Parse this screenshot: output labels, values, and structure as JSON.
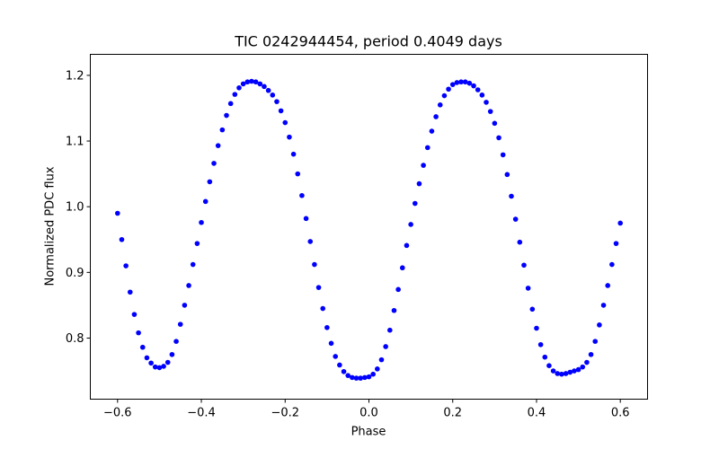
{
  "chart_data": {
    "type": "scatter",
    "title": "TIC 0242944454, period 0.4049 days",
    "xlabel": "Phase",
    "ylabel": "Normalized PDC flux",
    "xlim": [
      -0.665,
      0.665
    ],
    "ylim": [
      0.707,
      1.232
    ],
    "xticks": [
      -0.6,
      -0.4,
      -0.2,
      0.0,
      0.2,
      0.4,
      0.6
    ],
    "xtick_labels": [
      "−0.6",
      "−0.4",
      "−0.2",
      "0.0",
      "0.2",
      "0.4",
      "0.6"
    ],
    "yticks": [
      0.8,
      0.9,
      1.0,
      1.1,
      1.2
    ],
    "ytick_labels": [
      "0.8",
      "0.9",
      "1.0",
      "1.1",
      "1.2"
    ],
    "grid": false,
    "marker_color": "#0000ff",
    "series": [
      {
        "x": [
          -0.6,
          -0.59,
          -0.58,
          -0.57,
          -0.56,
          -0.55,
          -0.54,
          -0.53,
          -0.52,
          -0.51,
          -0.5,
          -0.49,
          -0.48,
          -0.47,
          -0.46,
          -0.45,
          -0.44,
          -0.43,
          -0.42,
          -0.41,
          -0.4,
          -0.39,
          -0.38,
          -0.37,
          -0.36,
          -0.35,
          -0.34,
          -0.33,
          -0.32,
          -0.31,
          -0.3,
          -0.29,
          -0.28,
          -0.27,
          -0.26,
          -0.25,
          -0.24,
          -0.23,
          -0.22,
          -0.21,
          -0.2,
          -0.19,
          -0.18,
          -0.17,
          -0.16,
          -0.15,
          -0.14,
          -0.13,
          -0.12,
          -0.11,
          -0.1,
          -0.09,
          -0.08,
          -0.07,
          -0.06,
          -0.05,
          -0.04,
          -0.03,
          -0.02,
          -0.01,
          0.0,
          0.01,
          0.02,
          0.03,
          0.04,
          0.05,
          0.06,
          0.07,
          0.08,
          0.09,
          0.1,
          0.11,
          0.12,
          0.13,
          0.14,
          0.15,
          0.16,
          0.17,
          0.18,
          0.19,
          0.2,
          0.21,
          0.22,
          0.23,
          0.24,
          0.25,
          0.26,
          0.27,
          0.28,
          0.29,
          0.3,
          0.31,
          0.32,
          0.33,
          0.34,
          0.35,
          0.36,
          0.37,
          0.38,
          0.39,
          0.4,
          0.41,
          0.42,
          0.43,
          0.44,
          0.45,
          0.46,
          0.47,
          0.48,
          0.49,
          0.5,
          0.51,
          0.52,
          0.53,
          0.54,
          0.55,
          0.56,
          0.57,
          0.58,
          0.59,
          0.6
        ],
        "y": [
          0.99,
          0.95,
          0.91,
          0.87,
          0.836,
          0.808,
          0.786,
          0.77,
          0.762,
          0.756,
          0.755,
          0.757,
          0.763,
          0.775,
          0.795,
          0.821,
          0.85,
          0.88,
          0.912,
          0.944,
          0.976,
          1.008,
          1.038,
          1.066,
          1.093,
          1.117,
          1.139,
          1.157,
          1.171,
          1.181,
          1.187,
          1.19,
          1.191,
          1.19,
          1.187,
          1.183,
          1.177,
          1.17,
          1.16,
          1.146,
          1.128,
          1.106,
          1.08,
          1.05,
          1.017,
          0.982,
          0.947,
          0.912,
          0.877,
          0.845,
          0.816,
          0.792,
          0.772,
          0.759,
          0.749,
          0.743,
          0.74,
          0.739,
          0.739,
          0.74,
          0.741,
          0.745,
          0.753,
          0.767,
          0.787,
          0.812,
          0.842,
          0.874,
          0.907,
          0.941,
          0.973,
          1.005,
          1.035,
          1.063,
          1.09,
          1.115,
          1.137,
          1.155,
          1.169,
          1.179,
          1.186,
          1.189,
          1.19,
          1.19,
          1.188,
          1.184,
          1.178,
          1.17,
          1.159,
          1.145,
          1.127,
          1.105,
          1.079,
          1.049,
          1.016,
          0.981,
          0.946,
          0.911,
          0.876,
          0.844,
          0.815,
          0.79,
          0.771,
          0.758,
          0.75,
          0.746,
          0.745,
          0.746,
          0.748,
          0.75,
          0.752,
          0.756,
          0.763,
          0.775,
          0.795,
          0.82,
          0.85,
          0.88,
          0.912,
          0.944,
          0.975
        ]
      }
    ]
  }
}
